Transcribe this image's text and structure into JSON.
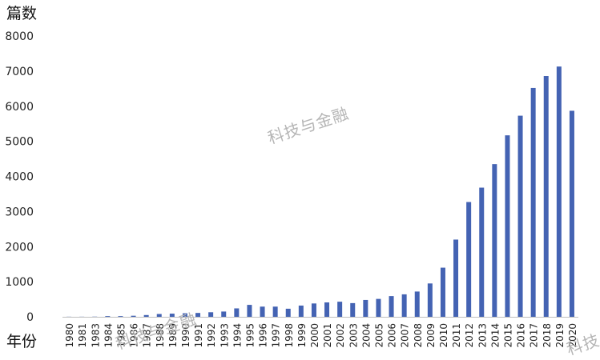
{
  "chart_data": {
    "type": "bar",
    "title": "",
    "ylabel": "篇数",
    "xlabel": "年份",
    "ylim": [
      0,
      8000
    ],
    "yticks": [
      0,
      1000,
      2000,
      3000,
      4000,
      5000,
      6000,
      7000,
      8000
    ],
    "grid": false,
    "legend": "none",
    "bar_color": "#4463b3",
    "categories": [
      "1980",
      "1981",
      "1983",
      "1984",
      "1985",
      "1986",
      "1987",
      "1988",
      "1989",
      "1990",
      "1991",
      "1992",
      "1993",
      "1994",
      "1995",
      "1996",
      "1997",
      "1998",
      "1999",
      "2000",
      "2001",
      "2002",
      "2003",
      "2004",
      "2005",
      "2006",
      "2007",
      "2008",
      "2009",
      "2010",
      "2011",
      "2012",
      "2013",
      "2014",
      "2015",
      "2016",
      "2017",
      "2018",
      "2019",
      "2020"
    ],
    "values": [
      3,
      3,
      5,
      20,
      20,
      30,
      50,
      80,
      90,
      100,
      110,
      130,
      150,
      240,
      340,
      290,
      290,
      230,
      320,
      380,
      410,
      430,
      390,
      480,
      510,
      590,
      640,
      720,
      950,
      1400,
      2200,
      3270,
      3680,
      4350,
      5170,
      5730,
      6520,
      6860,
      7130,
      5870
    ]
  },
  "watermark": {
    "text": "科技与金融"
  }
}
